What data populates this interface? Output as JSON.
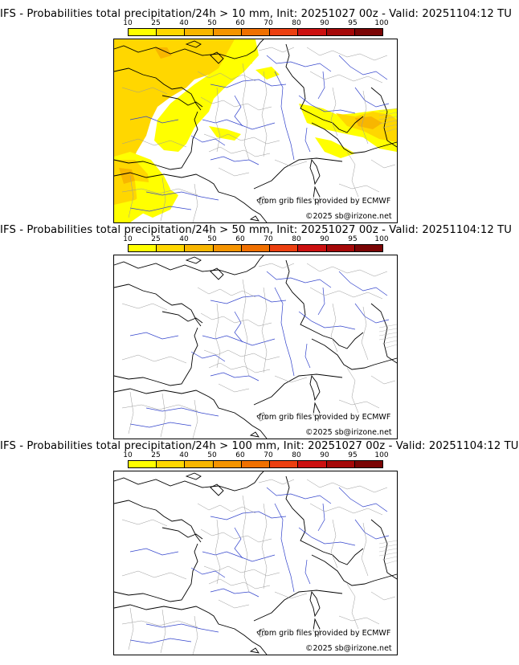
{
  "colorbar": {
    "ticks": [
      "10",
      "25",
      "40",
      "50",
      "60",
      "70",
      "80",
      "90",
      "95",
      "100"
    ],
    "colors": [
      "#ffff00",
      "#ffd700",
      "#f8b600",
      "#f59400",
      "#f07000",
      "#ec3f10",
      "#cc1010",
      "#a50808",
      "#7a0404",
      "#4d0000"
    ]
  },
  "panels": [
    {
      "title": "IFS - Probabilities total precipitation/24h > 10 mm, Init: 20251027 00z - Valid: 20251104:12 TU",
      "credit_source": "from grib files provided by ECMWF",
      "credit_copyright": "©2025 sb@irizone.net",
      "field": "10mm"
    },
    {
      "title": "IFS - Probabilities total precipitation/24h > 50 mm, Init: 20251027 00z - Valid: 20251104:12 TU",
      "credit_source": "from grib files provided by ECMWF",
      "credit_copyright": "©2025 sb@irizone.net",
      "field": "none"
    },
    {
      "title": "IFS - Probabilities total precipitation/24h > 100 mm, Init: 20251027 00z - Valid: 20251104:12 TU",
      "credit_source": "from grib files provided by ECMWF",
      "credit_copyright": "©2025 sb@irizone.net",
      "field": "none"
    }
  ]
}
